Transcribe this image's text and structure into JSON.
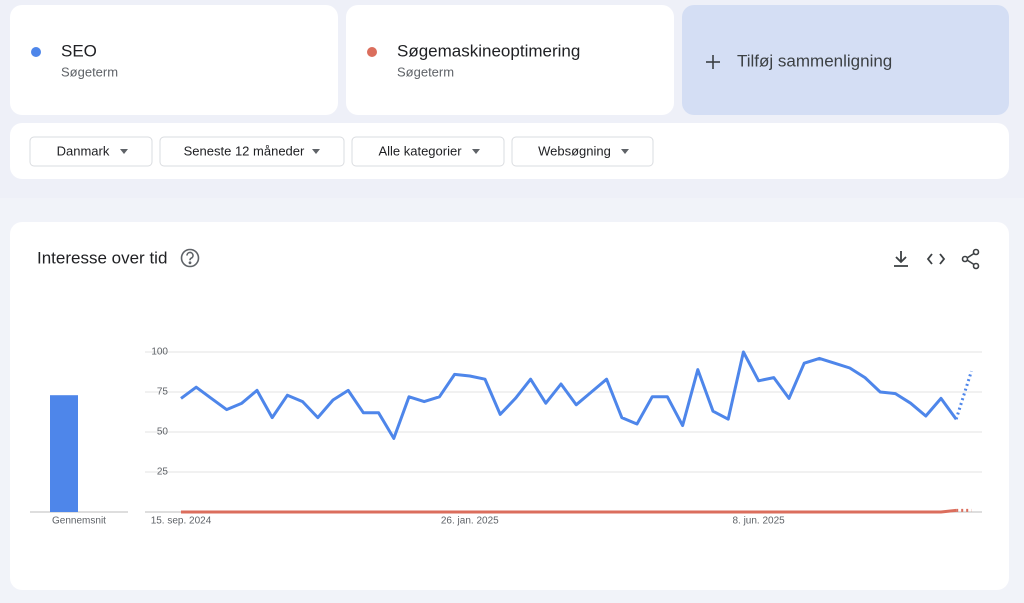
{
  "terms": [
    {
      "subtitle": "Søgeterm"
    },
    {
      "subtitle": "Søgeterm"
    }
  ],
  "add_comparison": "Tilføj sammenligning",
  "filters": [
    "Danmark",
    "Seneste 12 måneder",
    "Alle kategorier",
    "Websøgning"
  ],
  "chart_data": {
    "type": "line",
    "title": "Interesse over tid",
    "categories": [
      "15. sep. 2024",
      null,
      null,
      null,
      null,
      null,
      null,
      null,
      null,
      null,
      null,
      null,
      null,
      null,
      null,
      null,
      null,
      null,
      null,
      "26. jan. 2025",
      null,
      null,
      null,
      null,
      null,
      null,
      null,
      null,
      null,
      null,
      null,
      null,
      null,
      null,
      null,
      null,
      null,
      null,
      "8. jun. 2025",
      null,
      null,
      null,
      null,
      null,
      null,
      null,
      null,
      null,
      null,
      null,
      null,
      null,
      null
    ],
    "series": [
      {
        "name": "SEO",
        "color": "#4e86ea",
        "average": 73,
        "values": [
          71,
          78,
          71,
          64,
          68,
          76,
          59,
          73,
          69,
          59,
          70,
          76,
          62,
          62,
          46,
          72,
          69,
          72,
          86,
          85,
          83,
          61,
          71,
          83,
          68,
          80,
          67,
          75,
          83,
          59,
          55,
          72,
          72,
          54,
          89,
          63,
          58,
          100,
          82,
          84,
          71,
          93,
          96,
          93,
          90,
          84,
          75,
          74,
          68,
          60,
          71,
          58,
          88
        ]
      },
      {
        "name": "Søgemaskineoptimering",
        "color": "#db6e5d",
        "average": 0,
        "values": [
          0,
          0,
          0,
          0,
          0,
          0,
          0,
          0,
          0,
          0,
          0,
          0,
          0,
          0,
          0,
          0,
          0,
          0,
          0,
          0,
          0,
          0,
          0,
          0,
          0,
          0,
          0,
          0,
          0,
          0,
          0,
          0,
          0,
          0,
          0,
          0,
          0,
          0,
          0,
          0,
          0,
          0,
          0,
          0,
          0,
          0,
          0,
          0,
          0,
          0,
          0,
          1,
          1
        ]
      }
    ],
    "average_label": "Gennemsnit",
    "ylim": [
      0,
      100
    ],
    "yticks": [
      25,
      50,
      75,
      100
    ],
    "grid": true
  }
}
